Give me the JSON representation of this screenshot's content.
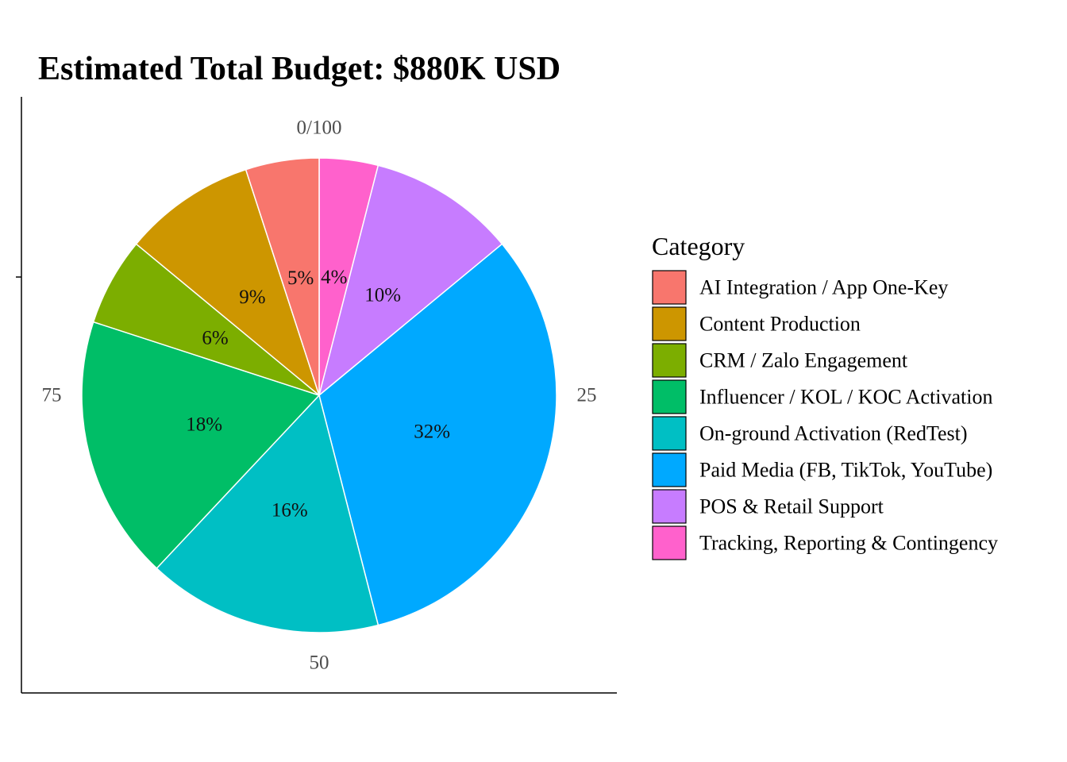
{
  "chart_data": {
    "type": "pie",
    "title": "Estimated Total Budget: $880K USD",
    "legend_title": "Category",
    "legend_position": "right",
    "theta_ticks": [
      "0/100",
      "25",
      "50",
      "75"
    ],
    "slices": [
      {
        "category": "Tracking, Reporting & Contingency",
        "value": 4,
        "label": "4%",
        "color": "#FF61CC"
      },
      {
        "category": "POS & Retail Support",
        "value": 10,
        "label": "10%",
        "color": "#C77CFF"
      },
      {
        "category": "Paid Media (FB, TikTok, YouTube)",
        "value": 32,
        "label": "32%",
        "color": "#00A9FF"
      },
      {
        "category": "On-ground Activation (RedTest)",
        "value": 16,
        "label": "16%",
        "color": "#00BFC4"
      },
      {
        "category": "Influencer / KOL / KOC Activation",
        "value": 18,
        "label": "18%",
        "color": "#00BE67"
      },
      {
        "category": "CRM / Zalo Engagement",
        "value": 6,
        "label": "6%",
        "color": "#7CAE00"
      },
      {
        "category": "Content Production",
        "value": 9,
        "label": "9%",
        "color": "#CD9600"
      },
      {
        "category": "AI Integration / App One-Key",
        "value": 5,
        "label": "5%",
        "color": "#F8766D"
      }
    ],
    "legend_order": [
      "AI Integration / App One-Key",
      "Content Production",
      "CRM / Zalo Engagement",
      "Influencer / KOL / KOC Activation",
      "On-ground Activation (RedTest)",
      "Paid Media (FB, TikTok, YouTube)",
      "POS & Retail Support",
      "Tracking, Reporting & Contingency"
    ]
  }
}
